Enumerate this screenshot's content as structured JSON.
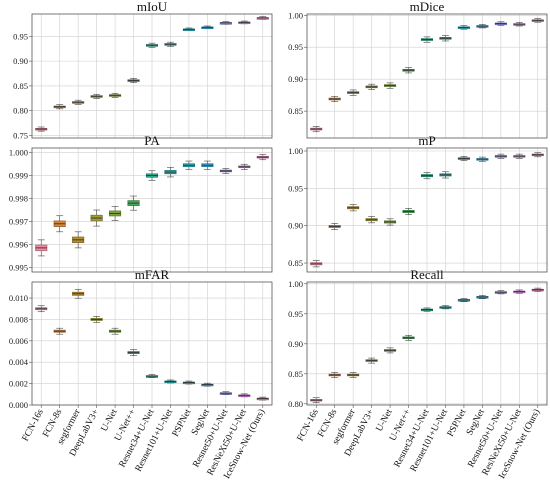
{
  "chart_data": {
    "type": "box",
    "categories": [
      "FCN-16s",
      "FCN-8s",
      "segformer",
      "DeepLabV3+",
      "U-Net",
      "U-Net++",
      "Resnet34+U-Net",
      "Resnet101+U-Net",
      "PSPNet",
      "SegNet",
      "Resnet50+U-Net",
      "ResNeXt50+U-Net",
      "IceSnow-Net (Ours)"
    ],
    "colors": [
      "#f28aa0",
      "#d9853b",
      "#b58e2e",
      "#a39b35",
      "#7fa33a",
      "#44aa55",
      "#2aa88a",
      "#2aa7a7",
      "#2ab0c0",
      "#38a7d8",
      "#8e8ee8",
      "#d37be0",
      "#e978b8"
    ],
    "panels": [
      {
        "title": "mIoU",
        "ylim": [
          0.745,
          0.995
        ],
        "yticks": [
          "0.75",
          "0.80",
          "0.85",
          "0.90",
          "0.95"
        ],
        "ytick_values": [
          0.75,
          0.8,
          0.85,
          0.9,
          0.95
        ],
        "medians": [
          0.763,
          0.808,
          0.817,
          0.829,
          0.831,
          0.861,
          0.932,
          0.934,
          0.964,
          0.968,
          0.977,
          0.978,
          0.987
        ],
        "spread": [
          0.003,
          0.003,
          0.003,
          0.003,
          0.003,
          0.003,
          0.003,
          0.003,
          0.002,
          0.002,
          0.002,
          0.002,
          0.002
        ]
      },
      {
        "title": "mDice",
        "ylim": [
          0.808,
          1.002
        ],
        "yticks": [
          "0.85",
          "0.90",
          "0.95",
          "1.00"
        ],
        "ytick_values": [
          0.85,
          0.9,
          0.95,
          1.0
        ],
        "medians": [
          0.822,
          0.869,
          0.879,
          0.888,
          0.89,
          0.914,
          0.962,
          0.964,
          0.981,
          0.983,
          0.987,
          0.986,
          0.992
        ],
        "spread": [
          0.003,
          0.003,
          0.003,
          0.003,
          0.003,
          0.003,
          0.003,
          0.003,
          0.002,
          0.002,
          0.002,
          0.002,
          0.002
        ]
      },
      {
        "title": "PA",
        "ylim": [
          0.9948,
          1.0002
        ],
        "yticks": [
          "0.995",
          "0.996",
          "0.997",
          "0.998",
          "0.999",
          "1.000"
        ],
        "ytick_values": [
          0.995,
          0.996,
          0.997,
          0.998,
          0.999,
          1.0
        ],
        "medians": [
          0.99585,
          0.9969,
          0.9962,
          0.99715,
          0.99735,
          0.9978,
          0.999,
          0.99915,
          0.99945,
          0.99945,
          0.9992,
          0.99938,
          0.9998
        ],
        "spread": [
          0.00025,
          0.00025,
          0.00025,
          0.00025,
          0.00022,
          0.00022,
          0.00015,
          0.00015,
          0.00013,
          0.00013,
          8e-05,
          8e-05,
          8e-05
        ]
      },
      {
        "title": "mP",
        "ylim": [
          0.838,
          1.004
        ],
        "yticks": [
          "0.85",
          "0.90",
          "0.95",
          "1.00"
        ],
        "ytick_values": [
          0.85,
          0.9,
          0.95,
          1.0
        ],
        "medians": [
          0.849,
          0.899,
          0.924,
          0.908,
          0.905,
          0.919,
          0.967,
          0.968,
          0.99,
          0.989,
          0.993,
          0.993,
          0.995
        ],
        "spread": [
          0.003,
          0.003,
          0.003,
          0.003,
          0.003,
          0.003,
          0.003,
          0.003,
          0.002,
          0.002,
          0.002,
          0.002,
          0.002
        ]
      },
      {
        "title": "mFAR",
        "ylim": [
          0.0,
          0.0115
        ],
        "yticks": [
          "0.000",
          "0.002",
          "0.004",
          "0.006",
          "0.008",
          "0.010"
        ],
        "ytick_values": [
          0.0,
          0.002,
          0.004,
          0.006,
          0.008,
          0.01
        ],
        "medians": [
          0.009,
          0.0069,
          0.0104,
          0.008,
          0.0069,
          0.0049,
          0.0027,
          0.0022,
          0.0021,
          0.0019,
          0.0011,
          0.0009,
          0.0006
        ],
        "spread": [
          0.0002,
          0.0002,
          0.0003,
          0.0002,
          0.0002,
          0.0002,
          0.0001,
          0.0001,
          0.0001,
          0.0001,
          0.0001,
          0.0001,
          0.0001
        ]
      },
      {
        "title": "Recall",
        "ylim": [
          0.798,
          1.003
        ],
        "yticks": [
          "0.80",
          "0.85",
          "0.90",
          "0.95",
          "1.00"
        ],
        "ytick_values": [
          0.8,
          0.85,
          0.9,
          0.95,
          1.0
        ],
        "medians": [
          0.806,
          0.848,
          0.848,
          0.872,
          0.889,
          0.91,
          0.957,
          0.961,
          0.973,
          0.978,
          0.986,
          0.987,
          0.99
        ],
        "spread": [
          0.003,
          0.003,
          0.003,
          0.003,
          0.003,
          0.003,
          0.002,
          0.002,
          0.002,
          0.002,
          0.002,
          0.002,
          0.002
        ]
      }
    ]
  }
}
